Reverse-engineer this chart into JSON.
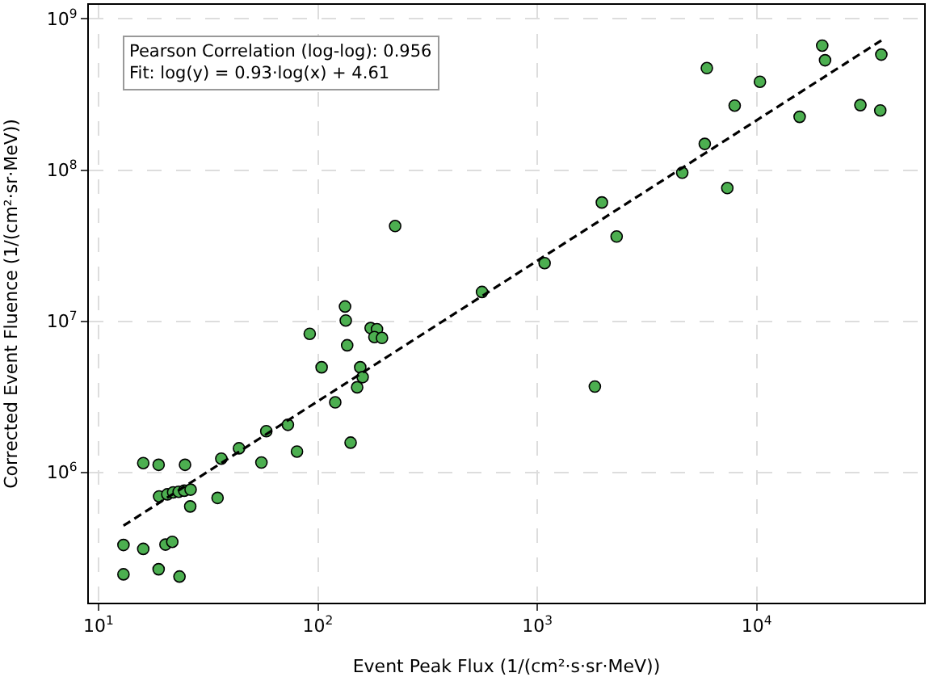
{
  "chart_data": {
    "type": "scatter",
    "xlabel": "Event Peak Flux (1/(cm²·s·sr·MeV))",
    "ylabel": "Corrected Event Fluence (1/(cm²·sr·MeV))",
    "log": "xy",
    "grid": true,
    "legend": false,
    "marker": "circle",
    "annotations": [
      "Pearson Correlation (log-log): 0.956\nFit: log(y) = 0.93·log(x) + 4.61"
    ],
    "xlim": [
      9.04,
      58000
    ],
    "ylim": [
      137000,
      1240000000
    ],
    "xticks": [
      {
        "value": 10,
        "label": "10$^{1}$"
      },
      {
        "value": 100,
        "label": "10$^{2}$"
      },
      {
        "value": 1000,
        "label": "10$^{3}$"
      },
      {
        "value": 10000,
        "label": "10$^{4}$"
      }
    ],
    "yticks": [
      {
        "value": 1000000,
        "label": "10$^{6}$"
      },
      {
        "value": 10000000,
        "label": "10$^{7}$"
      },
      {
        "value": 100000000,
        "label": "10$^{8}$"
      },
      {
        "value": 1000000000,
        "label": "10$^{9}$"
      }
    ],
    "series": [
      {
        "color": "#4caf50",
        "x": [
          13.0,
          16.0,
          20.2,
          21.7,
          13.0,
          18.8,
          23.4,
          16.0,
          18.8,
          24.8,
          36.3,
          43.7,
          55.3,
          58.2,
          73.0,
          80.3,
          18.9,
          20.6,
          21.9,
          23.2,
          24.6,
          26.3,
          26.2,
          34.9,
          225,
          133,
          134,
          91.8,
          174,
          186,
          181,
          196,
          136,
          104,
          156,
          160,
          151,
          120,
          141,
          560,
          1080,
          1970,
          2300,
          1830,
          4580,
          5800,
          7350,
          5930,
          7940,
          10350,
          15700,
          19900,
          20500,
          29700,
          36600,
          37000
        ],
        "values": [
          330000,
          311000,
          332000,
          346000,
          211000,
          228000,
          204000,
          1150000,
          1120000,
          1120000,
          1230000,
          1440000,
          1160000,
          1870000,
          2060000,
          1370000,
          692000,
          714000,
          736000,
          743000,
          755000,
          767000,
          594000,
          676000,
          42600000,
          12500000,
          10100000,
          8240000,
          9000000,
          8850000,
          7850000,
          7740000,
          6920000,
          4950000,
          4950000,
          4260000,
          3650000,
          2900000,
          1570000,
          15600000,
          24200000,
          61000000,
          36300000,
          3690000,
          96000000,
          149000000,
          76000000,
          473000000,
          267000000,
          384000000,
          225000000,
          666000000,
          533000000,
          269000000,
          248000000,
          581000000
        ]
      },
      {
        "type": "line",
        "color": "#000000",
        "line_style": "dashed",
        "marker": "none",
        "x": [
          13,
          37000
        ],
        "values": [
          443000,
          721000000
        ]
      }
    ]
  }
}
